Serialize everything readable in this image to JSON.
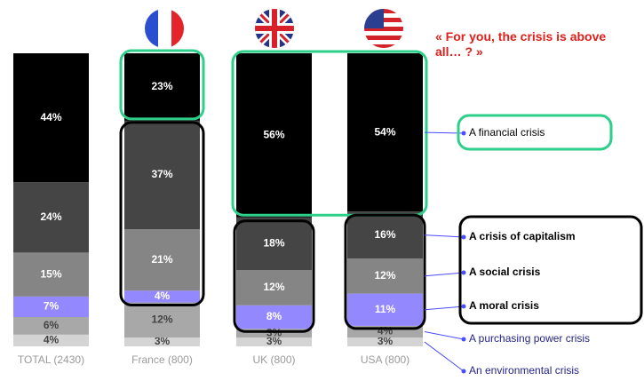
{
  "chart_data": {
    "type": "stacked-bar",
    "title": "« For you, the crisis is above all… ? »",
    "categories": [
      "TOTAL (2430)",
      "France (800)",
      "UK (800)",
      "USA (800)"
    ],
    "series": [
      {
        "name": "An environmental crisis",
        "color": "#d4d4d4",
        "values": [
          4,
          3,
          3,
          3
        ],
        "value_labels": [
          "4%",
          "3%",
          "3%",
          "3%"
        ]
      },
      {
        "name": "A purchasing power crisis",
        "color": "#a8a8a8",
        "values": [
          6,
          12,
          3,
          4
        ],
        "value_labels": [
          "6%",
          "12%",
          "3%",
          "4%"
        ]
      },
      {
        "name": "A moral crisis",
        "color": "#9488ff",
        "values": [
          7,
          4,
          8,
          11
        ],
        "value_labels": [
          "7%",
          "4%",
          "8%",
          "11%"
        ]
      },
      {
        "name": "A social crisis",
        "color": "#858585",
        "values": [
          15,
          21,
          12,
          12
        ],
        "value_labels": [
          "15%",
          "21%",
          "12%",
          "12%"
        ]
      },
      {
        "name": "A crisis of capitalism",
        "color": "#454545",
        "values": [
          24,
          37,
          18,
          16
        ],
        "value_labels": [
          "24%",
          "37%",
          "18%",
          "16%"
        ]
      },
      {
        "name": "A financial crisis",
        "color": "#000000",
        "values": [
          44,
          23,
          56,
          54
        ],
        "value_labels": [
          "44%",
          "23%",
          "56%",
          "54%"
        ]
      }
    ],
    "ylim": [
      0,
      100
    ]
  }
}
